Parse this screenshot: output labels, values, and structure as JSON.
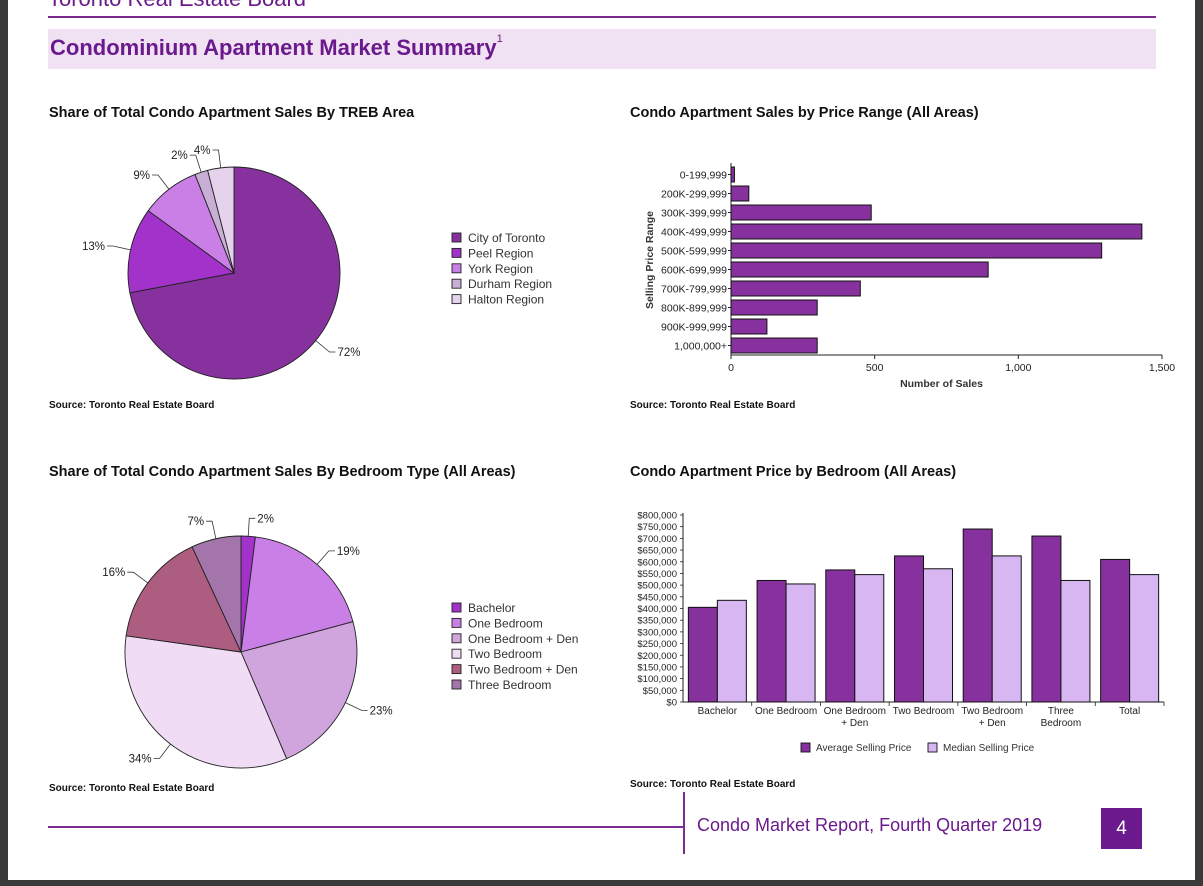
{
  "header": {
    "org_name": "Toronto Real Estate Board",
    "title": "Condominium Apartment Market Summary",
    "title_footnote": "1"
  },
  "footer": {
    "report_title": "Condo Market Report, Fourth Quarter 2019",
    "page_number": "4"
  },
  "colors": {
    "brand_purple": "#6a1a8c",
    "title_band": "#f1e2f3",
    "avg_bar": "#87319e",
    "median_bar": "#d7b6f2"
  },
  "chart_data": [
    {
      "type": "pie",
      "title": "Share of Total Condo Apartment Sales By TREB Area",
      "source": "Source: Toronto Real Estate Board",
      "legend_position": "right",
      "slices": [
        {
          "label": "City of Toronto",
          "value": 72,
          "value_label": "72%",
          "color": "#87319e"
        },
        {
          "label": "Peel Region",
          "value": 13,
          "value_label": "13%",
          "color": "#a232c9"
        },
        {
          "label": "York Region",
          "value": 9,
          "value_label": "9%",
          "color": "#c97fe6"
        },
        {
          "label": "Durham Region",
          "value": 2,
          "value_label": "2%",
          "color": "#c9aed6"
        },
        {
          "label": "Halton Region",
          "value": 4,
          "value_label": "4%",
          "color": "#e5d2ec"
        }
      ]
    },
    {
      "type": "bar",
      "orientation": "horizontal",
      "title": "Condo Apartment Sales by Price Range (All Areas)",
      "source": "Source: Toronto Real Estate Board",
      "xlabel": "Number of Sales",
      "ylabel": "Selling Price Range",
      "xlim": [
        0,
        1500
      ],
      "xticks": [
        0,
        500,
        1000,
        1500
      ],
      "xtick_labels": [
        "0",
        "500",
        "1,000",
        "1,500"
      ],
      "categories": [
        "0-199,999",
        "200K-299,999",
        "300K-399,999",
        "400K-499,999",
        "500K-599,999",
        "600K-699,999",
        "700K-799,999",
        "800K-899,999",
        "900K-999,999",
        "1,000,000+"
      ],
      "values": [
        12,
        62,
        488,
        1430,
        1290,
        895,
        450,
        300,
        125,
        300
      ],
      "color": "#87319e"
    },
    {
      "type": "pie",
      "title": "Share of Total Condo Apartment Sales By Bedroom Type (All Areas)",
      "source": "Source: Toronto Real Estate Board",
      "legend_position": "right",
      "slices": [
        {
          "label": "Bachelor",
          "value": 2,
          "value_label": "2%",
          "color": "#a232c9"
        },
        {
          "label": "One Bedroom",
          "value": 19,
          "value_label": "19%",
          "color": "#c97fe6"
        },
        {
          "label": "One Bedroom + Den",
          "value": 23,
          "value_label": "23%",
          "color": "#d0a5dd"
        },
        {
          "label": "Two Bedroom",
          "value": 34,
          "value_label": "34%",
          "color": "#f0dcf4"
        },
        {
          "label": "Two Bedroom + Den",
          "value": 16,
          "value_label": "16%",
          "color": "#ad5d80"
        },
        {
          "label": "Three Bedroom",
          "value": 7,
          "value_label": "7%",
          "color": "#a475aa"
        }
      ]
    },
    {
      "type": "bar",
      "title": "Condo Apartment Price by Bedroom (All Areas)",
      "source": "Source: Toronto Real Estate Board",
      "ylim": [
        0,
        800000
      ],
      "yticks": [
        0,
        50000,
        100000,
        150000,
        200000,
        250000,
        300000,
        350000,
        400000,
        450000,
        500000,
        550000,
        600000,
        650000,
        700000,
        750000,
        800000
      ],
      "ytick_labels": [
        "$0",
        "$50,000",
        "$100,000",
        "$150,000",
        "$200,000",
        "$250,000",
        "$300,000",
        "$350,000",
        "$400,000",
        "$450,000",
        "$500,000",
        "$550,000",
        "$600,000",
        "$650,000",
        "$700,000",
        "$750,000",
        "$800,000"
      ],
      "categories": [
        [
          "Bachelor"
        ],
        [
          "One Bedroom"
        ],
        [
          "One Bedroom",
          "+ Den"
        ],
        [
          "Two Bedroom"
        ],
        [
          "Two Bedroom",
          "+ Den"
        ],
        [
          "Three",
          "Bedroom"
        ],
        [
          "Total"
        ]
      ],
      "series": [
        {
          "name": "Average Selling Price",
          "color": "#87319e",
          "values": [
            405000,
            520000,
            565000,
            625000,
            740000,
            710000,
            610000
          ]
        },
        {
          "name": "Median Selling Price",
          "color": "#d7b6f2",
          "values": [
            435000,
            505000,
            545000,
            570000,
            625000,
            520000,
            545000
          ]
        }
      ],
      "legend_position": "bottom"
    }
  ]
}
